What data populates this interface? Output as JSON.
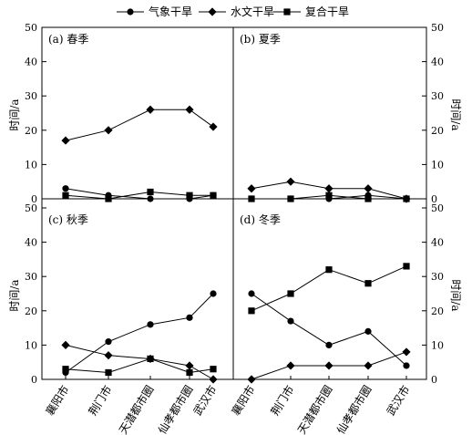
{
  "chart_data": {
    "type": "line",
    "legend": {
      "placement": "top-center",
      "entries": [
        {
          "name": "气象干旱",
          "marker": "circle"
        },
        {
          "name": "水文干旱",
          "marker": "diamond"
        },
        {
          "name": "复合干旱",
          "marker": "square"
        }
      ]
    },
    "categories": [
      "襄阳市",
      "荆门市",
      "天潜都市圈",
      "仙孝都市圈",
      "武汉市"
    ],
    "ylabel": "时间/a",
    "ylim": [
      0,
      50
    ],
    "yticks": [
      0,
      10,
      20,
      30,
      40,
      50
    ],
    "panels": [
      {
        "label": "(a) 春季",
        "series": [
          {
            "name": "气象干旱",
            "values": [
              3,
              1,
              0,
              0,
              1
            ]
          },
          {
            "name": "水文干旱",
            "values": [
              17,
              20,
              26,
              26,
              21
            ]
          },
          {
            "name": "复合干旱",
            "values": [
              1,
              0,
              2,
              1,
              1
            ]
          }
        ]
      },
      {
        "label": "(b) 夏季",
        "series": [
          {
            "name": "气象干旱",
            "values": [
              0,
              0,
              0,
              1,
              0
            ]
          },
          {
            "name": "水文干旱",
            "values": [
              3,
              5,
              3,
              3,
              0
            ]
          },
          {
            "name": "复合干旱",
            "values": [
              0,
              0,
              1,
              0,
              0
            ]
          }
        ]
      },
      {
        "label": "(c) 秋季",
        "series": [
          {
            "name": "气象干旱",
            "values": [
              2,
              11,
              16,
              18,
              25
            ]
          },
          {
            "name": "水文干旱",
            "values": [
              10,
              7,
              6,
              4,
              0
            ]
          },
          {
            "name": "复合干旱",
            "values": [
              3,
              2,
              6,
              2,
              3
            ]
          }
        ]
      },
      {
        "label": "(d) 冬季",
        "series": [
          {
            "name": "气象干旱",
            "values": [
              25,
              17,
              10,
              14,
              4
            ]
          },
          {
            "name": "水文干旱",
            "values": [
              0,
              4,
              4,
              4,
              8
            ]
          },
          {
            "name": "复合干旱",
            "values": [
              20,
              25,
              32,
              28,
              33
            ]
          }
        ]
      }
    ]
  }
}
